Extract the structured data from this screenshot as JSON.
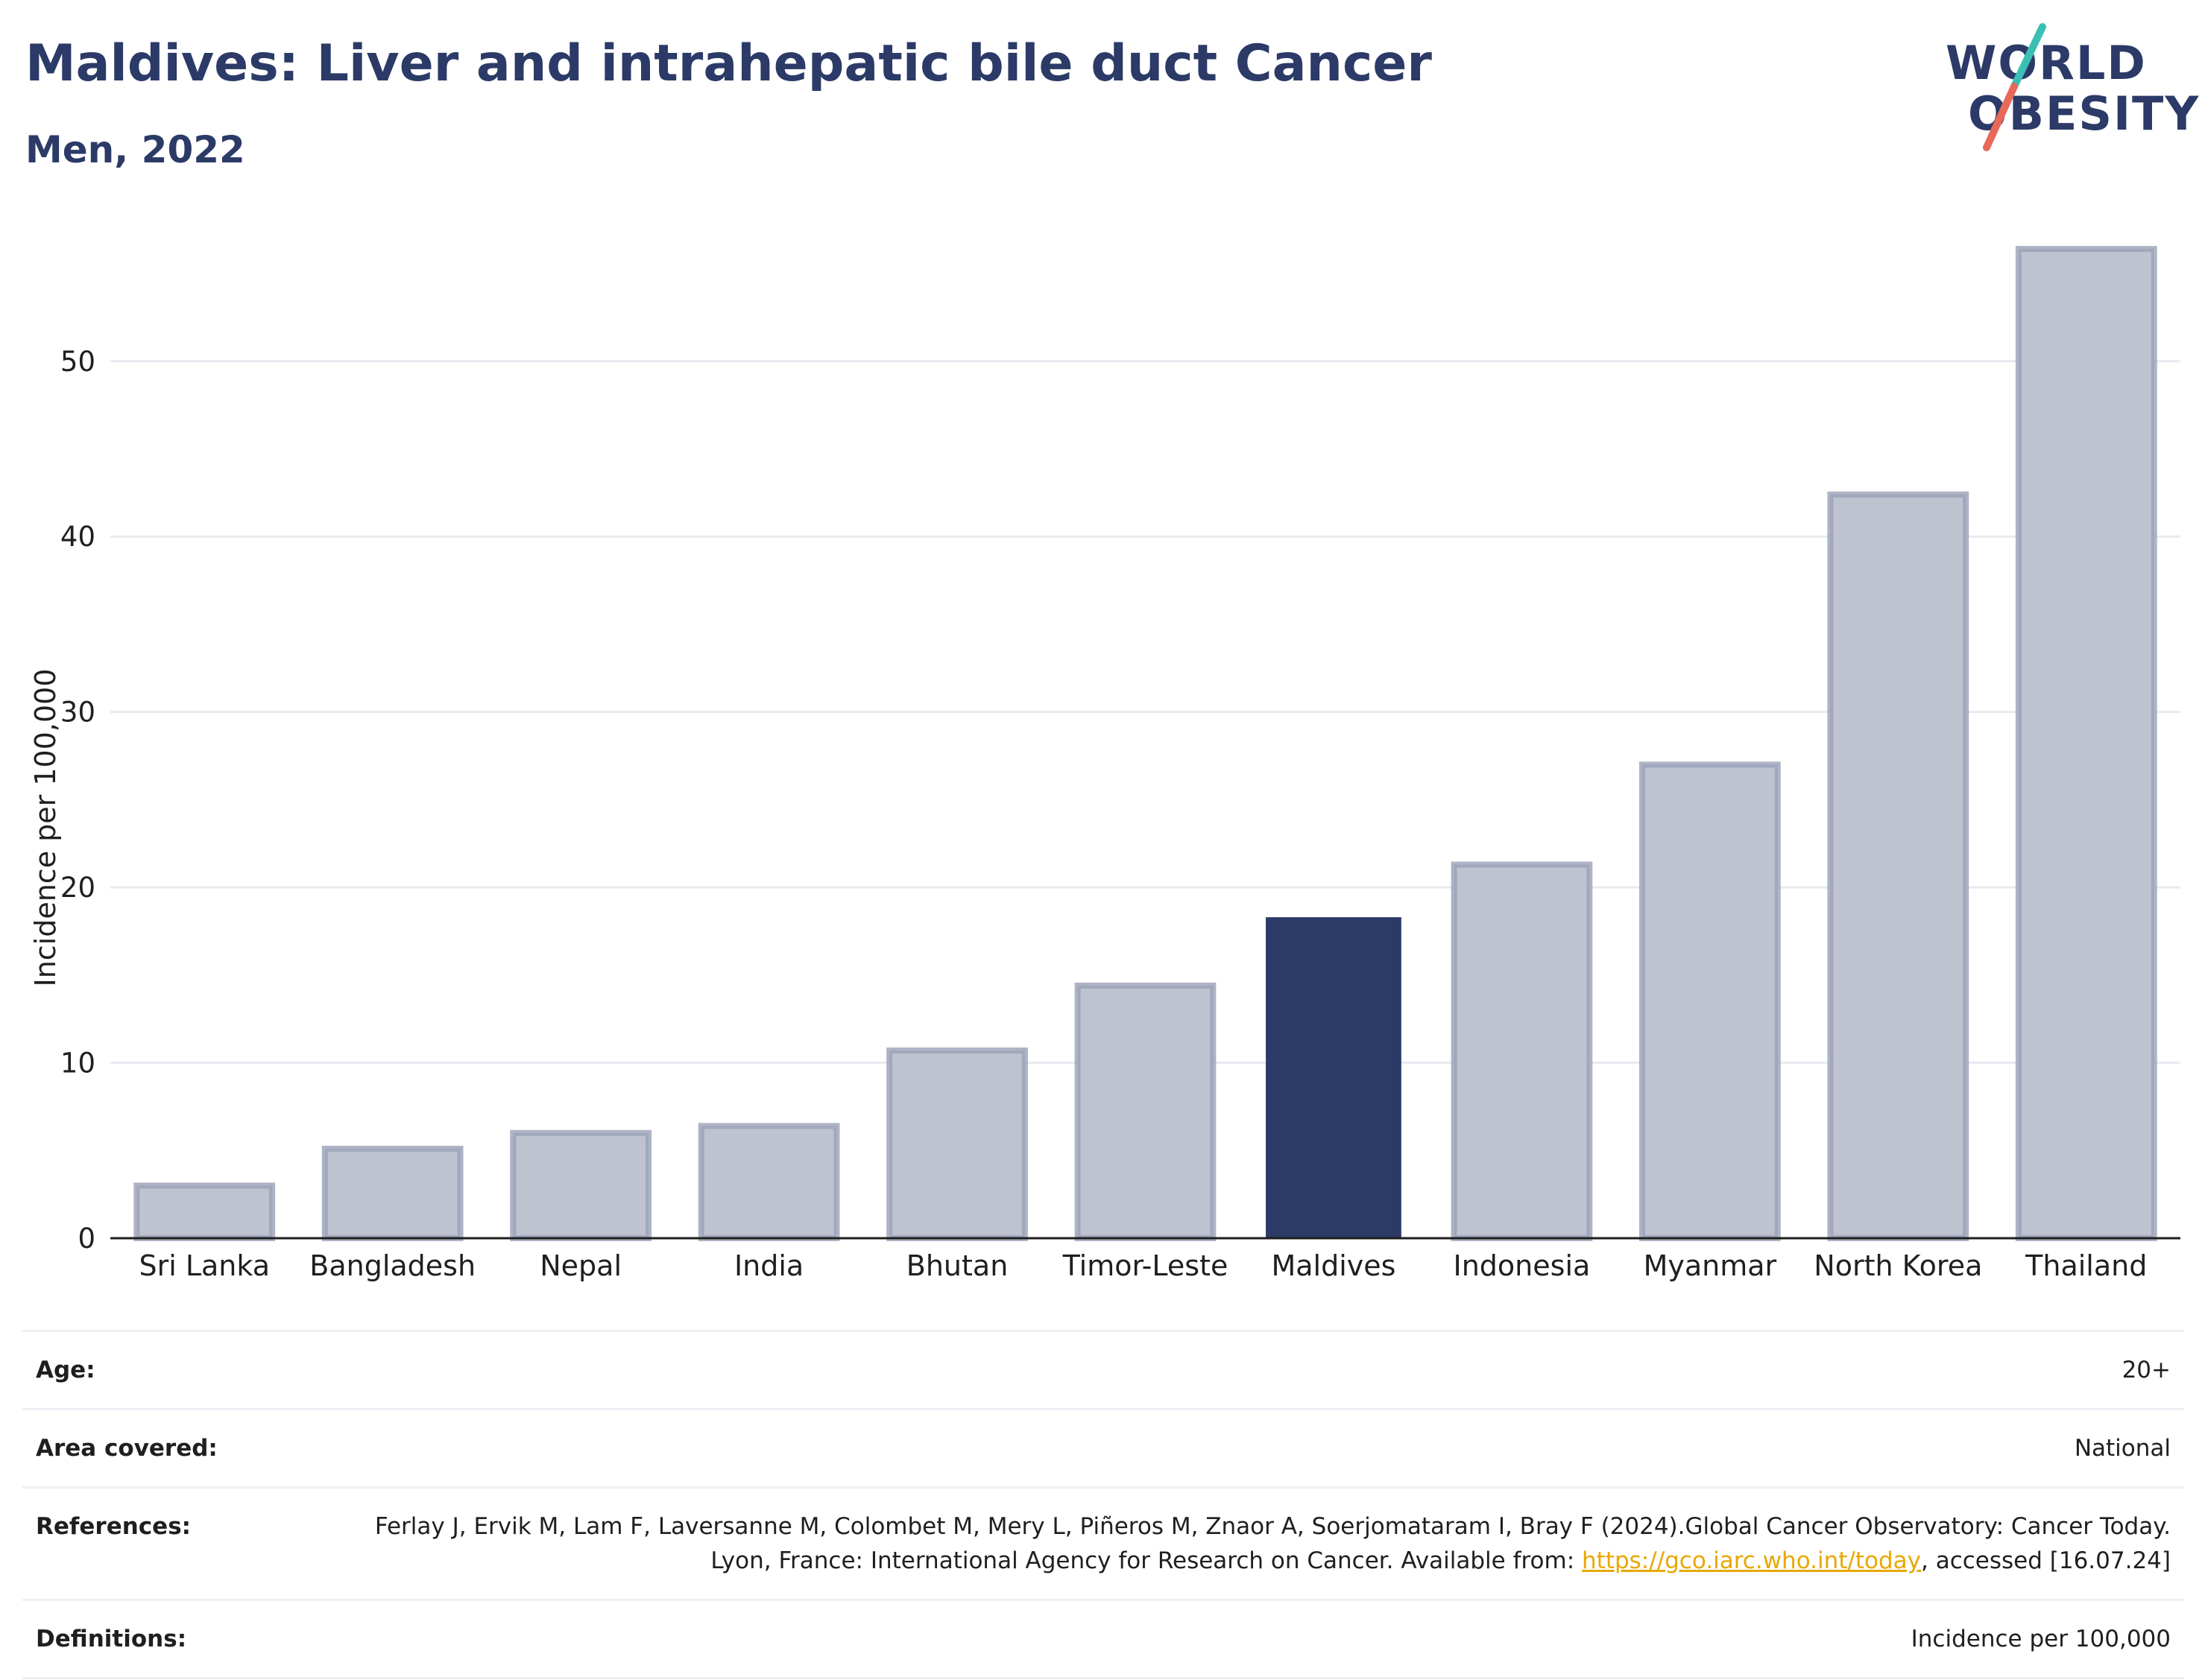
{
  "header": {
    "title": "Maldives: Liver and intrahepatic bile duct Cancer",
    "subtitle": "Men, 2022"
  },
  "logo": {
    "line1": "WORLD",
    "line2": "OBESITY",
    "colors": {
      "text": "#2b3a67",
      "slash_top": "#3bbfb5",
      "slash_bottom": "#e8685a"
    }
  },
  "chart_data": {
    "type": "bar",
    "categories": [
      "Sri Lanka",
      "Bangladesh",
      "Nepal",
      "India",
      "Bhutan",
      "Timor-Leste",
      "Maldives",
      "Indonesia",
      "Myanmar",
      "North Korea",
      "Thailand"
    ],
    "values": [
      3.0,
      5.1,
      6.0,
      6.4,
      10.7,
      14.4,
      18.3,
      21.3,
      27.0,
      42.4,
      56.4
    ],
    "highlight": "Maldives",
    "ylabel": "Incidence per 100,000",
    "xlabel": "",
    "ylim": [
      0,
      57
    ],
    "yticks": [
      0,
      10,
      20,
      30,
      40,
      50
    ],
    "grid": true,
    "colors": {
      "bar": "#2b3a67",
      "bar_muted_fill": "#bfc3d0",
      "bar_muted_stroke": "#9aa0b7",
      "grid": "#e8eaf0"
    }
  },
  "meta": {
    "age_label": "Age:",
    "age_value": "20+",
    "area_label": "Area covered:",
    "area_value": "National",
    "references_label": "References:",
    "references_text_1": "Ferlay J, Ervik M, Lam F, Laversanne M, Colombet M, Mery L, Piñeros M, Znaor A, Soerjomataram I, Bray F (2024).Global Cancer Observatory: Cancer Today. Lyon, France: International Agency for Research on Cancer. Available from: ",
    "references_link": "https://gco.iarc.who.int/today",
    "references_text_2": ", accessed [16.07.24]",
    "definitions_label": "Definitions:",
    "definitions_value": "Incidence per 100,000"
  }
}
